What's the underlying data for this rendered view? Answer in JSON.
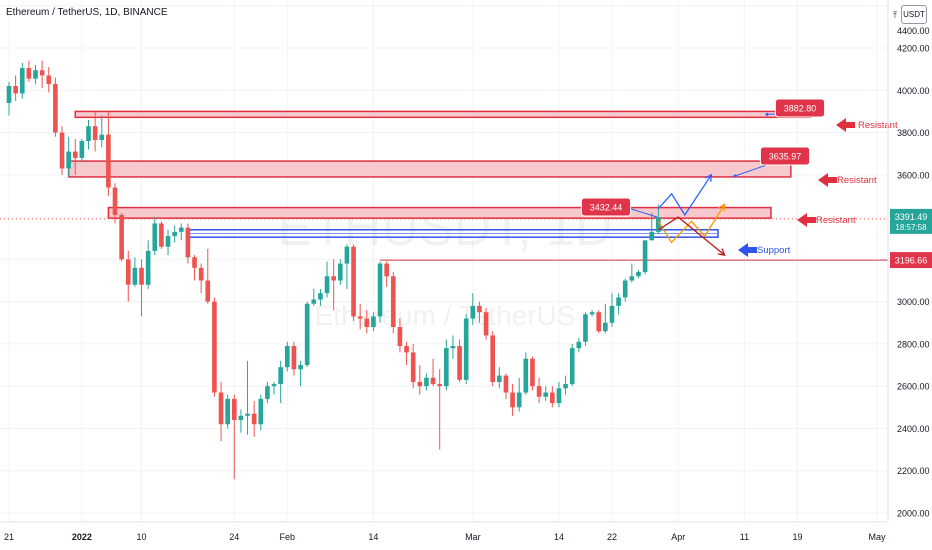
{
  "header": {
    "title": "Ethereum / TetherUS, 1D, BINANCE"
  },
  "currency_label": "USDT",
  "icons": {
    "axis_top": "arrow-up-icon",
    "resistant": "arrow-left-icon",
    "support": "arrow-left-icon"
  },
  "watermark": {
    "symbol": "ETHUSDT, 1D",
    "name": "Ethereum / TetherUS"
  },
  "colors": {
    "up": "#26a69a",
    "down": "#ef5350",
    "zone": "#f7c9cc",
    "zone_border": "#e03040",
    "support": "#2f54eb",
    "badge": "#e0344a",
    "blue_path": "#2962ff",
    "orange_path": "#ff9800",
    "red_path": "#b71c1c"
  },
  "chart_data": {
    "type": "candlestick",
    "title": "Ethereum / TetherUS, 1D, BINANCE",
    "ylim": [
      1950,
      4450
    ],
    "y_ticks": [
      2000,
      2200,
      2400,
      2600,
      2800,
      3000,
      3200,
      3400,
      3600,
      3800,
      4000,
      4200,
      4400
    ],
    "y_tick_labels": [
      "2000.00",
      "2200.00",
      "2400.00",
      "2600.00",
      "2800.00",
      "3000.00",
      "3200.00",
      "3400.00",
      "3600.00",
      "3800.00",
      "4000.00",
      "4200.00",
      "4400.00"
    ],
    "x_range": [
      "2021-12-21",
      "2022-05-01"
    ],
    "x_ticks": [
      {
        "date": "2021-12-21",
        "label": "21"
      },
      {
        "date": "2022-01-01",
        "label": "2022"
      },
      {
        "date": "2022-01-10",
        "label": "10"
      },
      {
        "date": "2022-01-24",
        "label": "24"
      },
      {
        "date": "2022-02-01",
        "label": "Feb"
      },
      {
        "date": "2022-02-14",
        "label": "14"
      },
      {
        "date": "2022-03-01",
        "label": "Mar"
      },
      {
        "date": "2022-03-14",
        "label": "14"
      },
      {
        "date": "2022-03-22",
        "label": "22"
      },
      {
        "date": "2022-04-01",
        "label": "Apr"
      },
      {
        "date": "2022-04-11",
        "label": "11"
      },
      {
        "date": "2022-04-19",
        "label": "19"
      },
      {
        "date": "2022-05-01",
        "label": "May"
      }
    ],
    "candles": [
      {
        "date": "2021-12-21",
        "o": 3940,
        "h": 4040,
        "l": 3880,
        "c": 4020
      },
      {
        "date": "2021-12-22",
        "o": 4020,
        "h": 4070,
        "l": 3950,
        "c": 3985
      },
      {
        "date": "2021-12-23",
        "o": 3985,
        "h": 4130,
        "l": 3960,
        "c": 4105
      },
      {
        "date": "2021-12-24",
        "o": 4105,
        "h": 4140,
        "l": 4040,
        "c": 4055
      },
      {
        "date": "2021-12-25",
        "o": 4055,
        "h": 4120,
        "l": 4030,
        "c": 4095
      },
      {
        "date": "2021-12-26",
        "o": 4095,
        "h": 4140,
        "l": 4010,
        "c": 4070
      },
      {
        "date": "2021-12-27",
        "o": 4070,
        "h": 4110,
        "l": 3990,
        "c": 4030
      },
      {
        "date": "2021-12-28",
        "o": 4030,
        "h": 4060,
        "l": 3780,
        "c": 3800
      },
      {
        "date": "2021-12-29",
        "o": 3800,
        "h": 3830,
        "l": 3600,
        "c": 3630
      },
      {
        "date": "2021-12-30",
        "o": 3630,
        "h": 3780,
        "l": 3590,
        "c": 3710
      },
      {
        "date": "2021-12-31",
        "o": 3710,
        "h": 3770,
        "l": 3600,
        "c": 3680
      },
      {
        "date": "2022-01-01",
        "o": 3680,
        "h": 3770,
        "l": 3660,
        "c": 3760
      },
      {
        "date": "2022-01-02",
        "o": 3760,
        "h": 3860,
        "l": 3720,
        "c": 3830
      },
      {
        "date": "2022-01-03",
        "o": 3830,
        "h": 3900,
        "l": 3710,
        "c": 3765
      },
      {
        "date": "2022-01-04",
        "o": 3765,
        "h": 3880,
        "l": 3730,
        "c": 3790
      },
      {
        "date": "2022-01-05",
        "o": 3790,
        "h": 3900,
        "l": 3500,
        "c": 3540
      },
      {
        "date": "2022-01-06",
        "o": 3540,
        "h": 3560,
        "l": 3370,
        "c": 3410
      },
      {
        "date": "2022-01-07",
        "o": 3410,
        "h": 3420,
        "l": 3190,
        "c": 3200
      },
      {
        "date": "2022-01-08",
        "o": 3200,
        "h": 3240,
        "l": 3000,
        "c": 3080
      },
      {
        "date": "2022-01-09",
        "o": 3080,
        "h": 3210,
        "l": 3070,
        "c": 3160
      },
      {
        "date": "2022-01-10",
        "o": 3160,
        "h": 3200,
        "l": 2930,
        "c": 3080
      },
      {
        "date": "2022-01-11",
        "o": 3080,
        "h": 3290,
        "l": 3060,
        "c": 3240
      },
      {
        "date": "2022-01-12",
        "o": 3240,
        "h": 3400,
        "l": 3220,
        "c": 3370
      },
      {
        "date": "2022-01-13",
        "o": 3370,
        "h": 3380,
        "l": 3250,
        "c": 3260
      },
      {
        "date": "2022-01-14",
        "o": 3260,
        "h": 3340,
        "l": 3220,
        "c": 3310
      },
      {
        "date": "2022-01-15",
        "o": 3310,
        "h": 3360,
        "l": 3280,
        "c": 3330
      },
      {
        "date": "2022-01-16",
        "o": 3330,
        "h": 3370,
        "l": 3290,
        "c": 3350
      },
      {
        "date": "2022-01-17",
        "o": 3350,
        "h": 3370,
        "l": 3180,
        "c": 3210
      },
      {
        "date": "2022-01-18",
        "o": 3210,
        "h": 3220,
        "l": 3100,
        "c": 3160
      },
      {
        "date": "2022-01-19",
        "o": 3160,
        "h": 3180,
        "l": 3040,
        "c": 3100
      },
      {
        "date": "2022-01-20",
        "o": 3100,
        "h": 3250,
        "l": 2990,
        "c": 3000
      },
      {
        "date": "2022-01-21",
        "o": 3000,
        "h": 3020,
        "l": 2550,
        "c": 2570
      },
      {
        "date": "2022-01-22",
        "o": 2570,
        "h": 2620,
        "l": 2340,
        "c": 2420
      },
      {
        "date": "2022-01-23",
        "o": 2420,
        "h": 2560,
        "l": 2400,
        "c": 2540
      },
      {
        "date": "2022-01-24",
        "o": 2540,
        "h": 2560,
        "l": 2160,
        "c": 2440
      },
      {
        "date": "2022-01-25",
        "o": 2440,
        "h": 2490,
        "l": 2380,
        "c": 2460
      },
      {
        "date": "2022-01-26",
        "o": 2460,
        "h": 2720,
        "l": 2370,
        "c": 2470
      },
      {
        "date": "2022-01-27",
        "o": 2470,
        "h": 2530,
        "l": 2360,
        "c": 2420
      },
      {
        "date": "2022-01-28",
        "o": 2420,
        "h": 2560,
        "l": 2390,
        "c": 2540
      },
      {
        "date": "2022-01-29",
        "o": 2540,
        "h": 2620,
        "l": 2520,
        "c": 2600
      },
      {
        "date": "2022-01-30",
        "o": 2600,
        "h": 2620,
        "l": 2560,
        "c": 2610
      },
      {
        "date": "2022-01-31",
        "o": 2610,
        "h": 2720,
        "l": 2520,
        "c": 2690
      },
      {
        "date": "2022-02-01",
        "o": 2690,
        "h": 2810,
        "l": 2670,
        "c": 2790
      },
      {
        "date": "2022-02-02",
        "o": 2790,
        "h": 2810,
        "l": 2650,
        "c": 2680
      },
      {
        "date": "2022-02-03",
        "o": 2680,
        "h": 2720,
        "l": 2600,
        "c": 2700
      },
      {
        "date": "2022-02-04",
        "o": 2700,
        "h": 3000,
        "l": 2690,
        "c": 2990
      },
      {
        "date": "2022-02-05",
        "o": 2990,
        "h": 3060,
        "l": 2980,
        "c": 3010
      },
      {
        "date": "2022-02-06",
        "o": 3010,
        "h": 3060,
        "l": 2980,
        "c": 3040
      },
      {
        "date": "2022-02-07",
        "o": 3040,
        "h": 3190,
        "l": 3020,
        "c": 3120
      },
      {
        "date": "2022-02-08",
        "o": 3120,
        "h": 3200,
        "l": 2960,
        "c": 3100
      },
      {
        "date": "2022-02-09",
        "o": 3100,
        "h": 3200,
        "l": 3080,
        "c": 3180
      },
      {
        "date": "2022-02-10",
        "o": 3180,
        "h": 3270,
        "l": 3060,
        "c": 3260
      },
      {
        "date": "2022-02-11",
        "o": 3260,
        "h": 3270,
        "l": 2910,
        "c": 2930
      },
      {
        "date": "2022-02-12",
        "o": 2930,
        "h": 2990,
        "l": 2870,
        "c": 2920
      },
      {
        "date": "2022-02-13",
        "o": 2920,
        "h": 2960,
        "l": 2850,
        "c": 2880
      },
      {
        "date": "2022-02-14",
        "o": 2880,
        "h": 2950,
        "l": 2860,
        "c": 2930
      },
      {
        "date": "2022-02-15",
        "o": 2930,
        "h": 3190,
        "l": 2900,
        "c": 3180
      },
      {
        "date": "2022-02-16",
        "o": 3180,
        "h": 3190,
        "l": 3070,
        "c": 3120
      },
      {
        "date": "2022-02-17",
        "o": 3120,
        "h": 3140,
        "l": 2850,
        "c": 2880
      },
      {
        "date": "2022-02-18",
        "o": 2880,
        "h": 2920,
        "l": 2760,
        "c": 2790
      },
      {
        "date": "2022-02-19",
        "o": 2790,
        "h": 2810,
        "l": 2700,
        "c": 2760
      },
      {
        "date": "2022-02-20",
        "o": 2760,
        "h": 2800,
        "l": 2590,
        "c": 2620
      },
      {
        "date": "2022-02-21",
        "o": 2620,
        "h": 2700,
        "l": 2560,
        "c": 2600
      },
      {
        "date": "2022-02-22",
        "o": 2600,
        "h": 2660,
        "l": 2580,
        "c": 2640
      },
      {
        "date": "2022-02-23",
        "o": 2640,
        "h": 2730,
        "l": 2600,
        "c": 2610
      },
      {
        "date": "2022-02-24",
        "o": 2610,
        "h": 2680,
        "l": 2300,
        "c": 2600
      },
      {
        "date": "2022-02-25",
        "o": 2600,
        "h": 2820,
        "l": 2580,
        "c": 2780
      },
      {
        "date": "2022-02-26",
        "o": 2780,
        "h": 2840,
        "l": 2730,
        "c": 2790
      },
      {
        "date": "2022-02-27",
        "o": 2790,
        "h": 2820,
        "l": 2620,
        "c": 2630
      },
      {
        "date": "2022-02-28",
        "o": 2630,
        "h": 2940,
        "l": 2610,
        "c": 2920
      },
      {
        "date": "2022-03-01",
        "o": 2920,
        "h": 3040,
        "l": 2890,
        "c": 2980
      },
      {
        "date": "2022-03-02",
        "o": 2980,
        "h": 3000,
        "l": 2900,
        "c": 2950
      },
      {
        "date": "2022-03-03",
        "o": 2950,
        "h": 2970,
        "l": 2820,
        "c": 2840
      },
      {
        "date": "2022-03-04",
        "o": 2840,
        "h": 2860,
        "l": 2600,
        "c": 2620
      },
      {
        "date": "2022-03-05",
        "o": 2620,
        "h": 2690,
        "l": 2590,
        "c": 2650
      },
      {
        "date": "2022-03-06",
        "o": 2650,
        "h": 2660,
        "l": 2540,
        "c": 2570
      },
      {
        "date": "2022-03-07",
        "o": 2570,
        "h": 2610,
        "l": 2460,
        "c": 2500
      },
      {
        "date": "2022-03-08",
        "o": 2500,
        "h": 2640,
        "l": 2480,
        "c": 2570
      },
      {
        "date": "2022-03-09",
        "o": 2570,
        "h": 2760,
        "l": 2560,
        "c": 2730
      },
      {
        "date": "2022-03-10",
        "o": 2730,
        "h": 2740,
        "l": 2580,
        "c": 2600
      },
      {
        "date": "2022-03-11",
        "o": 2600,
        "h": 2640,
        "l": 2520,
        "c": 2550
      },
      {
        "date": "2022-03-12",
        "o": 2550,
        "h": 2600,
        "l": 2530,
        "c": 2570
      },
      {
        "date": "2022-03-13",
        "o": 2570,
        "h": 2600,
        "l": 2500,
        "c": 2520
      },
      {
        "date": "2022-03-14",
        "o": 2520,
        "h": 2620,
        "l": 2500,
        "c": 2590
      },
      {
        "date": "2022-03-15",
        "o": 2590,
        "h": 2650,
        "l": 2560,
        "c": 2610
      },
      {
        "date": "2022-03-16",
        "o": 2610,
        "h": 2800,
        "l": 2600,
        "c": 2780
      },
      {
        "date": "2022-03-17",
        "o": 2780,
        "h": 2830,
        "l": 2760,
        "c": 2810
      },
      {
        "date": "2022-03-18",
        "o": 2810,
        "h": 2950,
        "l": 2790,
        "c": 2940
      },
      {
        "date": "2022-03-19",
        "o": 2940,
        "h": 2960,
        "l": 2930,
        "c": 2950
      },
      {
        "date": "2022-03-20",
        "o": 2950,
        "h": 2960,
        "l": 2850,
        "c": 2860
      },
      {
        "date": "2022-03-21",
        "o": 2860,
        "h": 2990,
        "l": 2850,
        "c": 2900
      },
      {
        "date": "2022-03-22",
        "o": 2900,
        "h": 3040,
        "l": 2880,
        "c": 2980
      },
      {
        "date": "2022-03-23",
        "o": 2980,
        "h": 3040,
        "l": 2940,
        "c": 3020
      },
      {
        "date": "2022-03-24",
        "o": 3020,
        "h": 3110,
        "l": 3000,
        "c": 3100
      },
      {
        "date": "2022-03-25",
        "o": 3100,
        "h": 3180,
        "l": 3090,
        "c": 3120
      },
      {
        "date": "2022-03-26",
        "o": 3120,
        "h": 3150,
        "l": 3110,
        "c": 3140
      },
      {
        "date": "2022-03-27",
        "o": 3140,
        "h": 3290,
        "l": 3130,
        "c": 3290
      },
      {
        "date": "2022-03-28",
        "o": 3290,
        "h": 3420,
        "l": 3290,
        "c": 3330
      },
      {
        "date": "2022-03-29",
        "o": 3330,
        "h": 3460,
        "l": 3320,
        "c": 3400
      }
    ],
    "zones": [
      {
        "name": "resistant-top",
        "from": "2021-12-31",
        "to": "2022-04-21",
        "low": 3872,
        "high": 3900,
        "label": "Resistant",
        "badge": "3882.80"
      },
      {
        "name": "resistant-mid",
        "from": "2021-12-30",
        "to": "2022-04-18",
        "low": 3590,
        "high": 3665,
        "label": "Resistant",
        "badge": "3635.97"
      },
      {
        "name": "resistant-low",
        "from": "2022-01-05",
        "to": "2022-04-15",
        "low": 3395,
        "high": 3445,
        "label": "Resistant",
        "badge": "3432.44"
      }
    ],
    "support": {
      "from": "2022-01-17",
      "to": "2022-04-07",
      "low": 3305,
      "high": 3340,
      "label": "Support"
    },
    "line_3196": {
      "from": "2022-02-15",
      "to": "2022-05-06",
      "value": 3196.66,
      "label": "3196.66"
    },
    "current_price": {
      "value": 3391.49,
      "label": "3391.49",
      "countdown": "18:57:58"
    },
    "projections": [
      {
        "name": "blue-path",
        "points": [
          [
            "2022-03-29",
            3440
          ],
          [
            "2022-03-31",
            3510
          ],
          [
            "2022-04-02",
            3410
          ],
          [
            "2022-04-06",
            3600
          ]
        ]
      },
      {
        "name": "orange-path",
        "points": [
          [
            "2022-03-29",
            3380
          ],
          [
            "2022-03-31",
            3280
          ],
          [
            "2022-04-03",
            3380
          ],
          [
            "2022-04-05",
            3310
          ],
          [
            "2022-04-08",
            3460
          ]
        ]
      },
      {
        "name": "red-path",
        "points": [
          [
            "2022-03-29",
            3340
          ],
          [
            "2022-04-01",
            3400
          ],
          [
            "2022-04-08",
            3220
          ]
        ]
      }
    ]
  }
}
